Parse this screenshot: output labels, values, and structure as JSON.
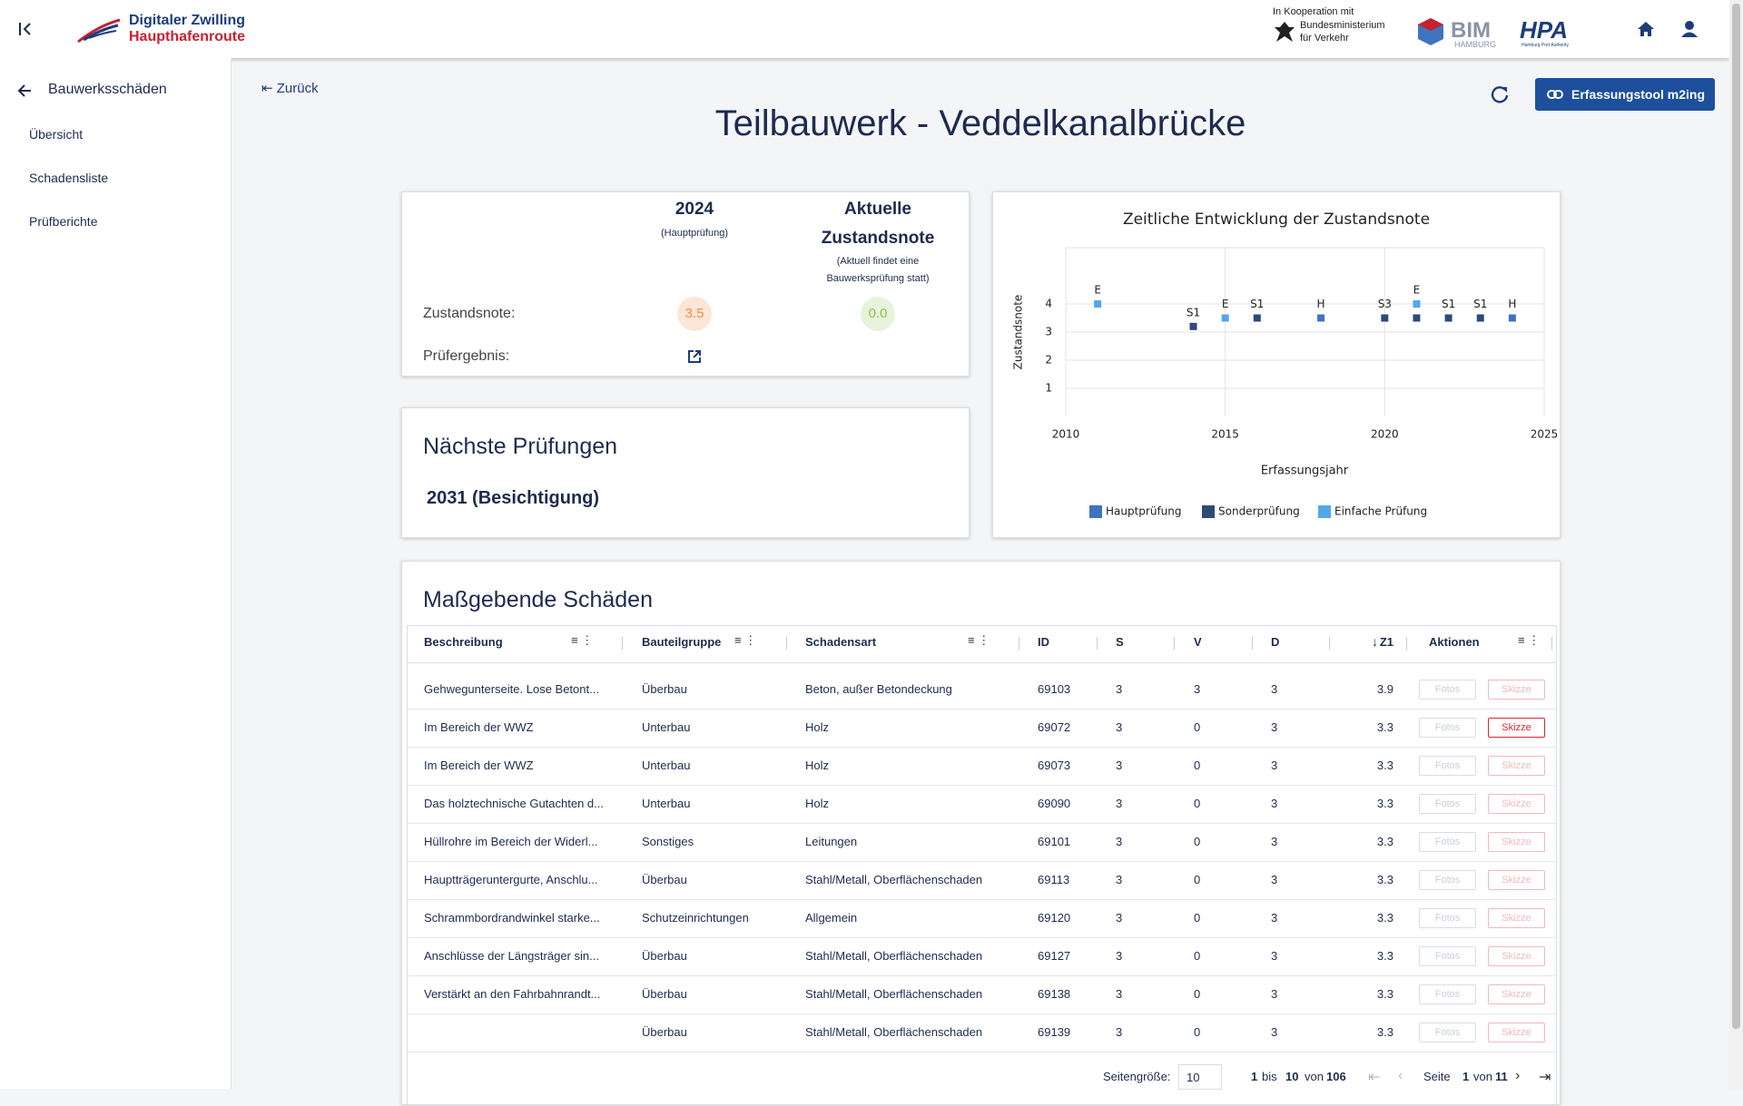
{
  "header": {
    "brand_line1": "Digitaler Zwilling",
    "brand_line2": "Haupthafenroute",
    "coop": "In Kooperation mit",
    "ministry_line1": "Bundesministerium",
    "ministry_line2": "für Verkehr",
    "bim": "BIM",
    "bim_sub": "HAMBURG",
    "hpa": "HPA",
    "hpa_sub": "Hamburg Port Authority"
  },
  "sidebar": {
    "back": "Bauwerksschäden",
    "items": [
      "Übersicht",
      "Schadensliste",
      "Prüfberichte"
    ]
  },
  "page": {
    "back": "Zurück",
    "button": "Erfassungstool m2ing",
    "title": "Teilbauwerk - Veddelkanalbrücke"
  },
  "summary": {
    "year": "2024",
    "year_sub": "(Hauptprüfung)",
    "current_line1": "Aktuelle",
    "current_line2": "Zustandsnote",
    "current_sub1": "(Aktuell findet eine",
    "current_sub2": "Bauwerksprüfung statt)",
    "grade_label": "Zustandsnote:",
    "grade_year": "3.5",
    "grade_current": "0.0",
    "result_label": "Prüfergebnis:"
  },
  "next": {
    "title": "Nächste Prüfungen",
    "value": "2031 (Besichtigung)"
  },
  "chart_data": {
    "type": "scatter",
    "title": "Zeitliche Entwicklung der Zustandsnote",
    "x_label": "Erfassungsjahr",
    "y_label": "Zustandsnote",
    "xlim": [
      2010,
      2025
    ],
    "xticks": [
      2010,
      2015,
      2020,
      2025
    ],
    "ylim": [
      0,
      6
    ],
    "yticks": [
      1,
      2,
      3,
      4
    ],
    "grid": true,
    "legend": "bottom",
    "series": [
      {
        "name": "Hauptprüfung",
        "color": "#3f74c0",
        "x": [
          2018,
          2024
        ],
        "values": [
          3.5,
          3.5
        ],
        "labels": [
          "H",
          "H"
        ]
      },
      {
        "name": "Sonderprüfung",
        "color": "#2e4a78",
        "x": [
          2014,
          2016,
          2020,
          2021,
          2022,
          2023
        ],
        "values": [
          3.2,
          3.5,
          3.5,
          3.5,
          3.5,
          3.5
        ],
        "labels": [
          "S1",
          "S1",
          "S3",
          null,
          "S1",
          "S1"
        ]
      },
      {
        "name": "Einfache Prüfung",
        "color": "#53a7ea",
        "x": [
          2011,
          2015,
          2021
        ],
        "values": [
          4,
          3.5,
          4
        ],
        "labels": [
          "E",
          "E",
          "E"
        ]
      }
    ]
  },
  "table": {
    "title": "Maßgebende Schäden",
    "columns": [
      "Beschreibung",
      "Bauteilgruppe",
      "Schadensart",
      "ID",
      "S",
      "V",
      "D",
      "Z1",
      "Aktionen"
    ],
    "actions": [
      "Fotos",
      "Skizze"
    ],
    "sketch_enabled_rows": [
      1
    ],
    "rows": [
      [
        "Gehwegunterseite. Lose Betont...",
        "Überbau",
        "Beton, außer Betondeckung",
        "69103",
        "3",
        "3",
        "3",
        "3.9"
      ],
      [
        "Im Bereich der WWZ",
        "Unterbau",
        "Holz",
        "69072",
        "3",
        "0",
        "3",
        "3.3"
      ],
      [
        "Im Bereich der WWZ",
        "Unterbau",
        "Holz",
        "69073",
        "3",
        "0",
        "3",
        "3.3"
      ],
      [
        "Das holztechnische Gutachten d...",
        "Unterbau",
        "Holz",
        "69090",
        "3",
        "0",
        "3",
        "3.3"
      ],
      [
        "Hüllrohre im Bereich der Widerl...",
        "Sonstiges",
        "Leitungen",
        "69101",
        "3",
        "0",
        "3",
        "3.3"
      ],
      [
        "Hauptträgeruntergurte, Anschlu...",
        "Überbau",
        "Stahl/Metall, Oberflächenschaden",
        "69113",
        "3",
        "0",
        "3",
        "3.3"
      ],
      [
        "Schrammbordrandwinkel starke...",
        "Schutzeinrichtungen",
        "Allgemein",
        "69120",
        "3",
        "0",
        "3",
        "3.3"
      ],
      [
        "Anschlüsse der Längsträger sin...",
        "Überbau",
        "Stahl/Metall, Oberflächenschaden",
        "69127",
        "3",
        "0",
        "3",
        "3.3"
      ],
      [
        "Verstärkt an den Fahrbahnrandt...",
        "Überbau",
        "Stahl/Metall, Oberflächenschaden",
        "69138",
        "3",
        "0",
        "3",
        "3.3"
      ],
      [
        null,
        "Überbau",
        "Stahl/Metall, Oberflächenschaden",
        "69139",
        "3",
        "0",
        "3",
        "3.3"
      ]
    ]
  },
  "pagination": {
    "size_label": "Seitengröße:",
    "size": "10",
    "from": "1",
    "bis": "bis",
    "to": "10",
    "von": "von",
    "total": "106",
    "seite": "Seite",
    "page": "1",
    "pages": "11"
  }
}
